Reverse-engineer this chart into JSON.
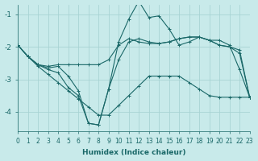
{
  "xlabel": "Humidex (Indice chaleur)",
  "background_color": "#c8eaea",
  "grid_color": "#a8d4d4",
  "line_color": "#1a6868",
  "x": [
    0,
    1,
    2,
    3,
    4,
    5,
    6,
    7,
    8,
    9,
    10,
    11,
    12,
    13,
    14,
    15,
    16,
    17,
    18,
    19,
    20,
    21,
    22,
    23
  ],
  "line1": [
    -1.95,
    -2.3,
    -2.55,
    -2.6,
    -2.55,
    -2.55,
    -2.55,
    -2.55,
    -2.55,
    -2.4,
    -1.95,
    -1.75,
    -1.85,
    -1.9,
    -1.9,
    -1.85,
    -1.75,
    -1.7,
    -1.7,
    -1.8,
    -1.95,
    -2.0,
    -2.2,
    -3.55
  ],
  "line2": [
    -1.95,
    -2.3,
    -2.55,
    -2.65,
    -2.6,
    -2.9,
    -3.35,
    -4.35,
    -4.4,
    -3.3,
    -1.85,
    -1.15,
    -0.6,
    -1.1,
    -1.05,
    -1.45,
    -1.95,
    -1.85,
    -1.7,
    -1.8,
    -1.95,
    -2.0,
    -2.1,
    -3.55
  ],
  "line3": [
    -1.95,
    -2.3,
    -2.55,
    -2.7,
    -2.8,
    -3.25,
    -3.5,
    -4.35,
    -4.4,
    -3.3,
    -2.4,
    -1.85,
    -1.75,
    -1.85,
    -1.9,
    -1.85,
    -1.75,
    -1.7,
    -1.7,
    -1.8,
    -1.8,
    -1.95,
    -2.7,
    -3.55
  ],
  "line4": [
    -1.95,
    -2.3,
    -2.6,
    -2.85,
    -3.1,
    -3.35,
    -3.6,
    -3.85,
    -4.1,
    -4.1,
    -3.8,
    -3.5,
    -3.2,
    -2.9,
    -2.9,
    -2.9,
    -2.9,
    -3.1,
    -3.3,
    -3.5,
    -3.55,
    -3.55,
    -3.55,
    -3.55
  ],
  "xlim": [
    0,
    23
  ],
  "ylim": [
    -4.6,
    -0.7
  ],
  "yticks": [
    -4,
    -3,
    -2,
    -1
  ],
  "xticks": [
    0,
    1,
    2,
    3,
    4,
    5,
    6,
    7,
    8,
    9,
    10,
    11,
    12,
    13,
    14,
    15,
    16,
    17,
    18,
    19,
    20,
    21,
    22,
    23
  ],
  "xlabel_fontsize": 6.5,
  "tick_fontsize": 5.5,
  "linewidth": 0.8,
  "markersize": 2.5
}
